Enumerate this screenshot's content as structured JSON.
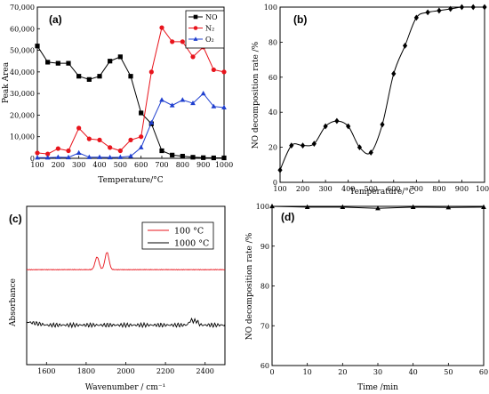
{
  "panels": {
    "a": {
      "label": "(a)",
      "ylabel": "Peak Area",
      "xlabel": "Temperature/°C"
    },
    "b": {
      "label": "(b)",
      "ylabel": "NO decomposition rate /%",
      "xlabel": "Temperature/°C"
    },
    "c": {
      "label": "(c)",
      "ylabel": "Absorbance",
      "xlabel": "Wavenumber / cm⁻¹"
    },
    "d": {
      "label": "(d)",
      "ylabel": "NO decomposition rate /%",
      "xlabel": "Time /min"
    }
  },
  "chart_data": [
    {
      "type": "line",
      "panel": "a",
      "title": "",
      "xlabel": "Temperature/°C",
      "ylabel": "Peak Area",
      "xlim": [
        100,
        1000
      ],
      "ylim": [
        0,
        70000
      ],
      "x_ticks": [
        100,
        200,
        300,
        400,
        500,
        600,
        700,
        800,
        900,
        1000
      ],
      "y_ticks": [
        0,
        10000,
        20000,
        30000,
        40000,
        50000,
        60000,
        70000
      ],
      "y_tick_labels": [
        "0",
        "10,000",
        "20,000",
        "30,000",
        "40,000",
        "50,000",
        "60,000",
        "70,000"
      ],
      "legend_position": "top-right",
      "x": [
        100,
        150,
        200,
        250,
        300,
        350,
        400,
        450,
        500,
        550,
        600,
        650,
        700,
        750,
        800,
        850,
        900,
        950,
        1000
      ],
      "series": [
        {
          "name": "NO",
          "color": "#000000",
          "marker": "square",
          "values": [
            52000,
            44500,
            44000,
            44000,
            38000,
            36500,
            38000,
            45000,
            47000,
            38000,
            21000,
            16000,
            3500,
            1500,
            1000,
            500,
            300,
            200,
            200
          ]
        },
        {
          "name": "N₂",
          "color": "#e8141c",
          "marker": "circle",
          "values": [
            2500,
            2000,
            4500,
            3500,
            14000,
            9000,
            8500,
            5000,
            3500,
            8500,
            10000,
            40000,
            60500,
            54000,
            54000,
            47000,
            51500,
            41000,
            40000
          ]
        },
        {
          "name": "O₂",
          "color": "#1f3fcf",
          "marker": "triangle",
          "values": [
            300,
            300,
            500,
            400,
            2500,
            500,
            500,
            400,
            500,
            1000,
            5000,
            16500,
            27000,
            24500,
            27000,
            25500,
            30000,
            24000,
            23500
          ]
        }
      ]
    },
    {
      "type": "line",
      "panel": "b",
      "title": "",
      "xlabel": "Temperature/°C",
      "ylabel": "NO decomposition rate /%",
      "xlim": [
        100,
        1000
      ],
      "ylim": [
        0,
        100
      ],
      "x_ticks": [
        100,
        200,
        300,
        400,
        500,
        600,
        700,
        800,
        900,
        1000
      ],
      "y_ticks": [
        0,
        20,
        40,
        60,
        80,
        100
      ],
      "x": [
        100,
        150,
        200,
        250,
        300,
        350,
        400,
        450,
        500,
        550,
        600,
        650,
        700,
        750,
        800,
        850,
        900,
        950,
        1000
      ],
      "series": [
        {
          "color": "#000000",
          "marker": "diamond",
          "values": [
            7,
            21,
            21,
            22,
            32,
            35,
            32,
            20,
            17,
            33,
            62,
            78,
            94,
            97,
            98,
            99,
            100,
            100,
            100
          ]
        }
      ]
    },
    {
      "type": "line",
      "panel": "c",
      "title": "",
      "xlabel": "Wavenumber / cm⁻¹",
      "ylabel": "Absorbance",
      "xlim": [
        1500,
        2500
      ],
      "x_ticks": [
        1600,
        1800,
        2000,
        2200,
        2400
      ],
      "legend_position": "top-right",
      "series": [
        {
          "name": "100 °C",
          "color": "#e8141c",
          "baseline": 0.6,
          "peaks": [
            [
              1855,
              0.08
            ],
            [
              1905,
              0.11
            ]
          ]
        },
        {
          "name": "1000 °C",
          "color": "#000000",
          "baseline": 0.25,
          "peaks": [
            [
              2330,
              0.03
            ],
            [
              2355,
              0.025
            ]
          ]
        }
      ]
    },
    {
      "type": "line",
      "panel": "d",
      "title": "",
      "xlabel": "Time /min",
      "ylabel": "NO decomposition rate /%",
      "xlim": [
        0,
        60
      ],
      "ylim": [
        60,
        100
      ],
      "x_ticks": [
        0,
        10,
        20,
        30,
        40,
        50,
        60
      ],
      "y_ticks": [
        60,
        70,
        80,
        90,
        100
      ],
      "x": [
        0,
        10,
        20,
        30,
        40,
        50,
        60
      ],
      "series": [
        {
          "color": "#000000",
          "marker": "triangle",
          "values": [
            100,
            99.8,
            99.8,
            99.5,
            99.8,
            99.7,
            99.8
          ]
        }
      ]
    }
  ]
}
